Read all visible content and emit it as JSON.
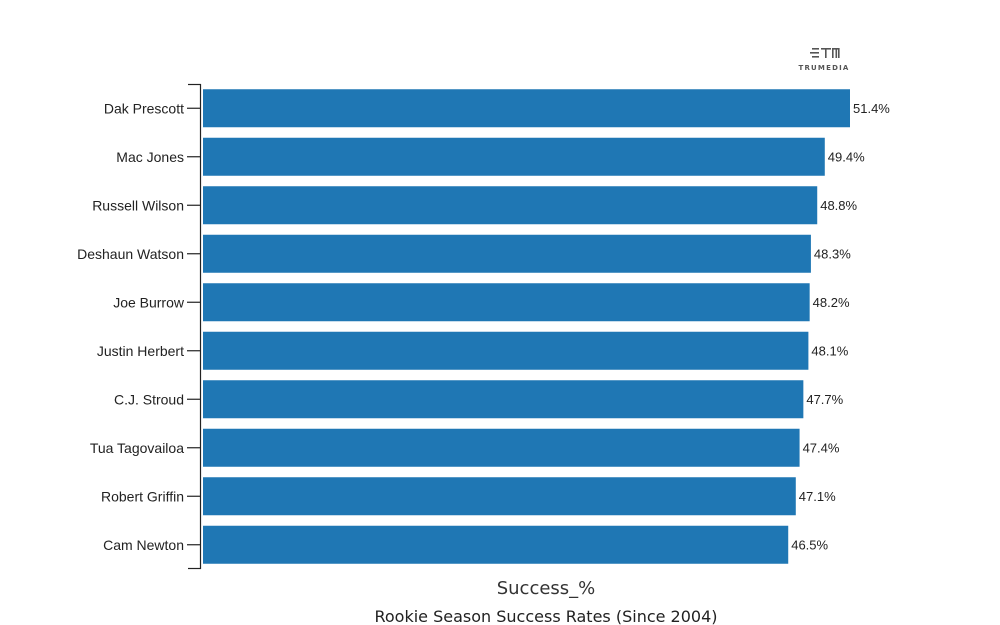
{
  "logo": {
    "text": "TRUMEDIA"
  },
  "chart_data": {
    "type": "bar",
    "orientation": "horizontal",
    "categories": [
      "Dak Prescott",
      "Mac Jones",
      "Russell Wilson",
      "Deshaun Watson",
      "Joe Burrow",
      "Justin Herbert",
      "C.J. Stroud",
      "Tua Tagovailoa",
      "Robert Griffin",
      "Cam Newton"
    ],
    "values": [
      51.4,
      49.4,
      48.8,
      48.3,
      48.2,
      48.1,
      47.7,
      47.4,
      47.1,
      46.5
    ],
    "value_labels": [
      "51.4%",
      "49.4%",
      "48.8%",
      "48.3%",
      "48.2%",
      "48.1%",
      "47.7%",
      "47.4%",
      "47.1%",
      "46.5%"
    ],
    "xlabel": "Success_%",
    "caption": "Rookie Season Success Rates (Since 2004)",
    "xlim": [
      0,
      51.4
    ],
    "bar_color": "#1f77b4",
    "grid": false
  }
}
